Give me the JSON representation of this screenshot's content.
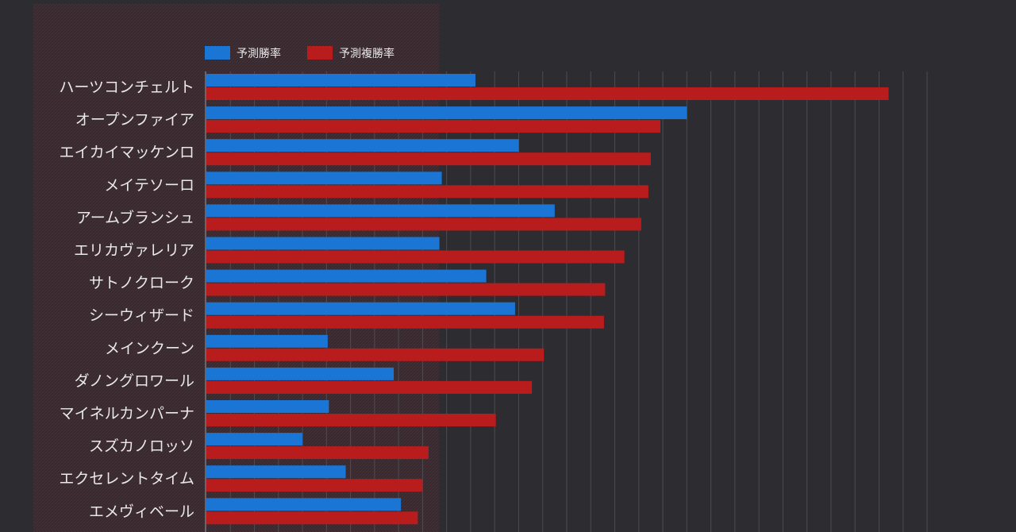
{
  "chart_data": {
    "type": "bar",
    "orientation": "horizontal",
    "title": "",
    "xlabel": "",
    "ylabel": "",
    "grid": true,
    "legend_position": "top-left",
    "xlim": [
      0,
      30
    ],
    "categories": [
      "ハーツコンチェルト",
      "オープンファイア",
      "エイカイマッケンロ",
      "メイテソーロ",
      "アームブランシュ",
      "エリカヴァレリア",
      "サトノクローク",
      "シーウィザード",
      "メインクーン",
      "ダノングロワール",
      "マイネルカンパーナ",
      "スズカノロッソ",
      "エクセレントタイム",
      "エメヴィベール"
    ],
    "series": [
      {
        "name": "予測勝率",
        "color": "#1a75d4",
        "values": [
          11.2,
          20.0,
          13.0,
          9.8,
          14.5,
          9.7,
          11.65,
          12.85,
          5.05,
          7.8,
          5.1,
          4.0,
          5.8,
          8.1
        ]
      },
      {
        "name": "予測複勝率",
        "color": "#b81c1c",
        "values": [
          28.4,
          18.9,
          18.5,
          18.4,
          18.1,
          17.4,
          16.6,
          16.55,
          14.05,
          13.55,
          12.05,
          9.25,
          9.0,
          8.8
        ]
      }
    ]
  },
  "colors": {
    "background": "#2d2c31",
    "panel": "#3a2a2e",
    "grid": "#4d4c52",
    "axis": "#9b9ba0",
    "text": "#e9e9ec"
  }
}
